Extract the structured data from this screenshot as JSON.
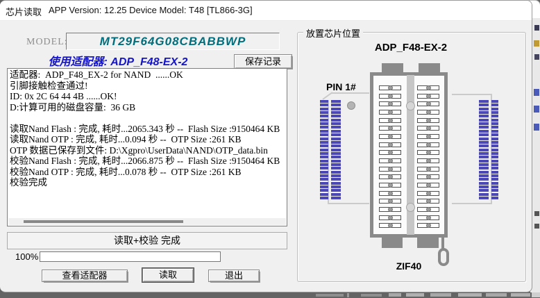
{
  "window": {
    "title": "芯片读取",
    "app_info": "APP Version: 12.25 Device Model: T48 [TL866-3G]"
  },
  "model": {
    "label": "MODEL:",
    "value": "MT29F64G08CBABBWP"
  },
  "adapter_line": "使用适配器: ADP_F48-EX-2",
  "save_button_label": "保存记录",
  "log": {
    "lines": [
      "适配器:  ADP_F48_EX-2 for NAND  ......OK",
      "引脚接触检查通过!",
      "ID: 0x 2C 64 44 4B ......OK!",
      "D:计算可用的磁盘容量:  36 GB",
      "",
      "读取Nand Flash : 完成, 耗时...2065.343 秒 --  Flash Size :9150464 KB",
      "读取Nand OTP : 完成, 耗时...0.094 秒 --  OTP Size :261 KB",
      "OTP 数据已保存到文件: D:\\Xgpro\\UserData\\NAND\\OTP_data.bin",
      "校验Nand Flash : 完成, 耗时...2066.875 秒 --  Flash Size :9150464 KB",
      "校验Nand OTP : 完成, 耗时...0.078 秒 --  OTP Size :261 KB",
      "校验完成"
    ]
  },
  "status": {
    "message": "读取+校验 完成",
    "progress_label": "100%",
    "progress_percent": 100
  },
  "buttons": {
    "view_adapter": "查看适配器",
    "read": "读取",
    "exit": "退出"
  },
  "chip_panel": {
    "group_title": "放置芯片位置",
    "adapter_name": "ADP_F48-EX-2",
    "pin1_label": "PIN 1#",
    "socket_label": "ZIF40"
  },
  "colors": {
    "adapter_text_blue": "#1414cc",
    "model_text_teal": "#006e7c",
    "header_pin_blue": "#4b48b5",
    "socket_gray": "#8a8a8a"
  }
}
